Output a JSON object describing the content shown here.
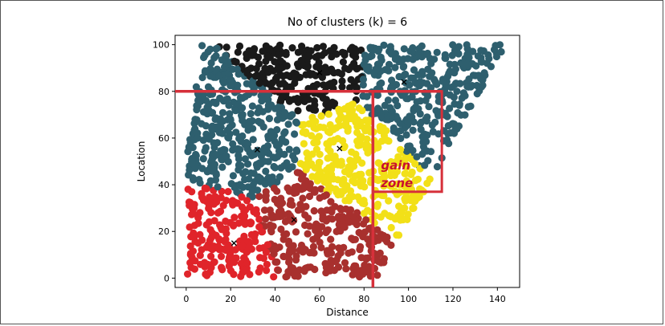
{
  "chart_data": {
    "type": "scatter",
    "title": "No of clusters (k) = 6",
    "xlabel": "Distance",
    "ylabel": "Location",
    "xlim": [
      -5,
      150
    ],
    "ylim": [
      -4,
      104
    ],
    "xticks": [
      0,
      20,
      40,
      60,
      80,
      100,
      120,
      140
    ],
    "yticks": [
      0,
      20,
      40,
      60,
      80,
      100
    ],
    "series": [
      {
        "color": "#1a1a1a",
        "centroid": [
          60,
          88
        ]
      },
      {
        "color": "#2e5f6e",
        "centroid": [
          98,
          84
        ]
      },
      {
        "color": "#2e5f6e",
        "centroid": [
          32,
          55
        ]
      },
      {
        "color": "#f2e018",
        "centroid": [
          69,
          55.5
        ]
      },
      {
        "color": "#a8302e",
        "centroid": [
          48.5,
          25
        ]
      },
      {
        "color": "#e0242a",
        "centroid": [
          21.5,
          15
        ]
      }
    ],
    "annotation": {
      "text_line1": "gain",
      "text_line2": "zone",
      "color": "#d6303a",
      "box_x": [
        84,
        115
      ],
      "box_y": [
        37,
        80
      ],
      "hline_y": 80,
      "vline_x": 84
    }
  }
}
